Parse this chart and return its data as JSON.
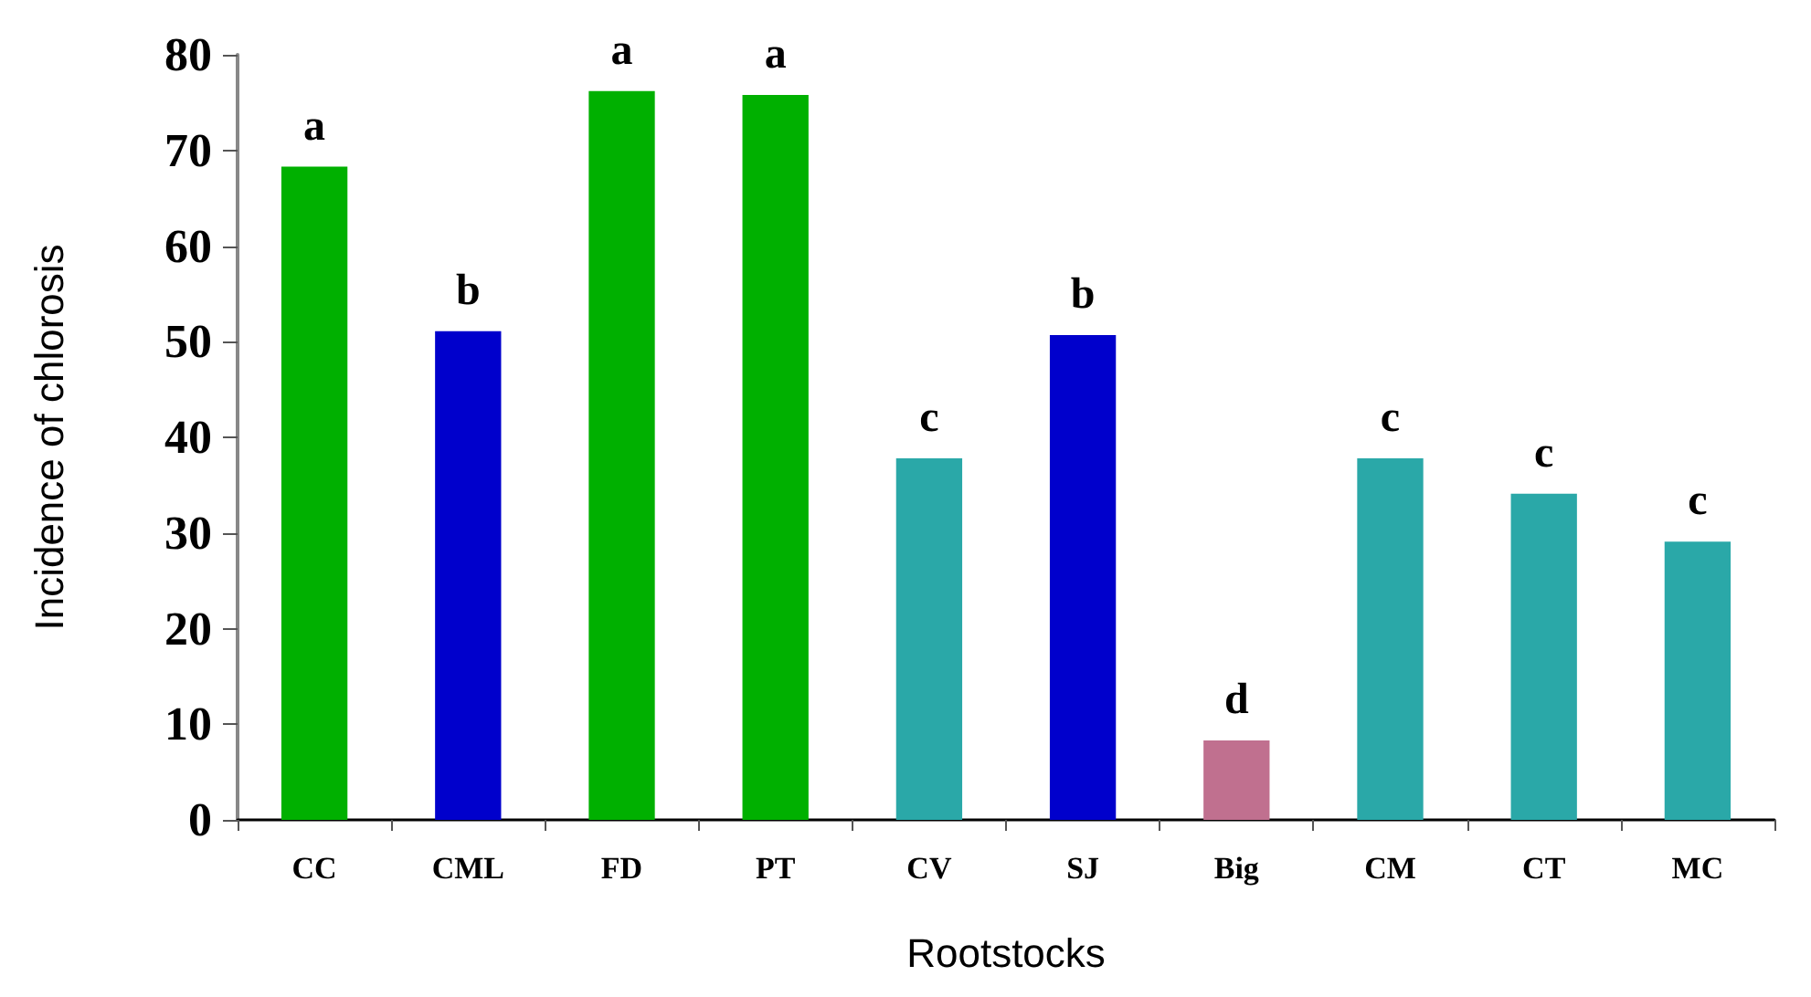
{
  "chart_data": {
    "type": "bar",
    "xlabel": "Rootstocks",
    "ylabel": "Incidence of chlorosis",
    "categories": [
      "CC",
      "CML",
      "FD",
      "PT",
      "CV",
      "SJ",
      "Big",
      "CM",
      "CT",
      "MC"
    ],
    "values": [
      68.3,
      51.1,
      76.2,
      75.8,
      37.8,
      50.7,
      8.3,
      37.8,
      34.1,
      29.1
    ],
    "colors": [
      "#00b000",
      "#0000cc",
      "#00b000",
      "#00b000",
      "#2aa8a8",
      "#0000cc",
      "#c0708f",
      "#2aa8a8",
      "#2aa8a8",
      "#2aa8a8"
    ],
    "value_labels": [
      "a",
      "b",
      "a",
      "a",
      "c",
      "b",
      "d",
      "c",
      "c",
      "c"
    ],
    "ylim": [
      0,
      80
    ],
    "yticks": [
      0,
      10,
      20,
      30,
      40,
      50,
      60,
      70,
      80
    ],
    "grid": false
  }
}
